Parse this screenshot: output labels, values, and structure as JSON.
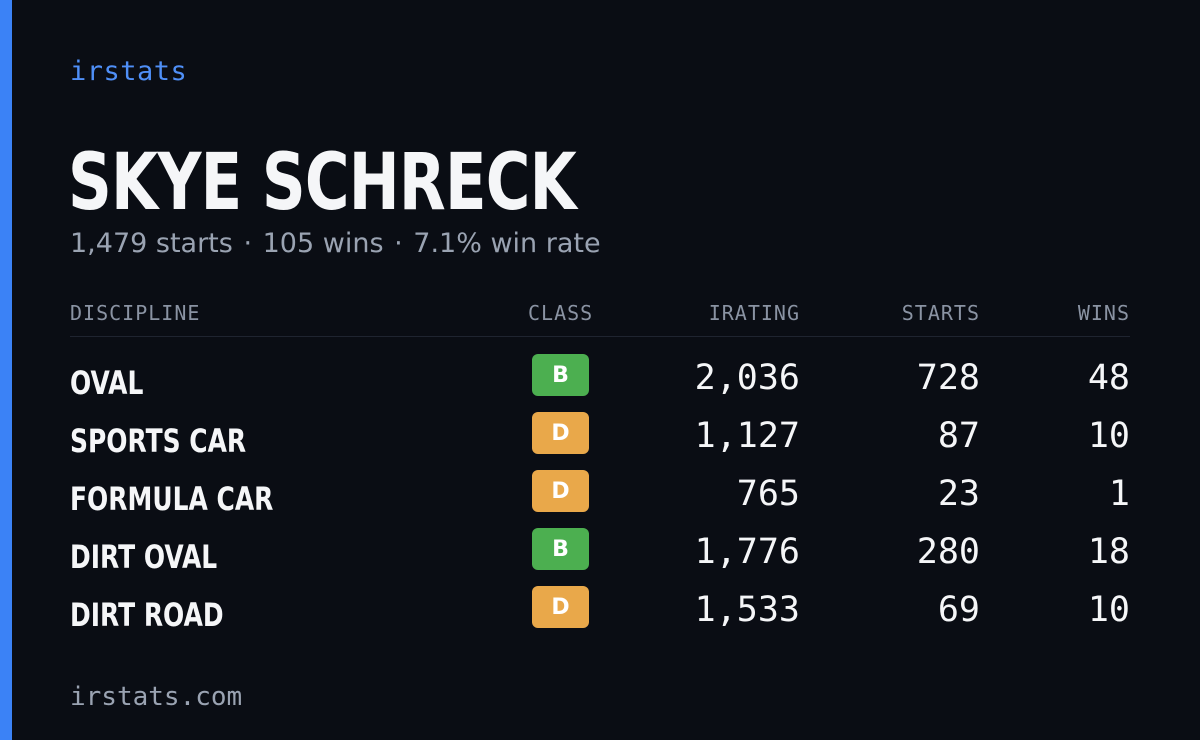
{
  "brand": "irstats",
  "driver": {
    "name": "SKYE SCHRECK",
    "starts": "1,479 starts",
    "wins": "105 wins",
    "win_rate": "7.1% win rate",
    "separator": "·"
  },
  "table": {
    "headers": {
      "discipline": "DISCIPLINE",
      "class": "CLASS",
      "irating": "IRATING",
      "starts": "STARTS",
      "wins": "WINS"
    },
    "rows": [
      {
        "discipline": "OVAL",
        "class": "B",
        "class_color": "#4caf50",
        "irating": "2,036",
        "starts": "728",
        "wins": "48"
      },
      {
        "discipline": "SPORTS CAR",
        "class": "D",
        "class_color": "#e9a84a",
        "irating": "1,127",
        "starts": "87",
        "wins": "10"
      },
      {
        "discipline": "FORMULA CAR",
        "class": "D",
        "class_color": "#e9a84a",
        "irating": "765",
        "starts": "23",
        "wins": "1"
      },
      {
        "discipline": "DIRT OVAL",
        "class": "B",
        "class_color": "#4caf50",
        "irating": "1,776",
        "starts": "280",
        "wins": "18"
      },
      {
        "discipline": "DIRT ROAD",
        "class": "D",
        "class_color": "#e9a84a",
        "irating": "1,533",
        "starts": "69",
        "wins": "10"
      }
    ]
  },
  "footer": {
    "url": "irstats.com"
  },
  "colors": {
    "accent": "#3b82f6",
    "background": "#0a0d14",
    "class_b": "#4caf50",
    "class_d": "#e9a84a"
  }
}
